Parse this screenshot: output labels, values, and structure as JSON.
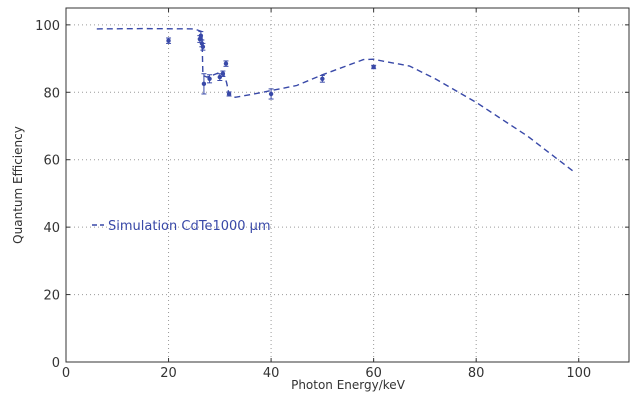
{
  "chart_data": {
    "type": "scatter",
    "xlabel": "Photon Energy/keV",
    "ylabel": "Quantum Efficiency",
    "xlim": [
      0,
      110
    ],
    "ylim": [
      0,
      105
    ],
    "x_ticks": [
      0,
      20,
      40,
      60,
      80,
      100
    ],
    "y_ticks": [
      0,
      20,
      40,
      60,
      80,
      100
    ],
    "grid": true,
    "legend_position": "middle-left",
    "colors": {
      "series": "#3949a8",
      "axis": "#333333",
      "grid": "#9a9a9a"
    },
    "series": [
      {
        "name": "Simulation CdTe1000 μm",
        "style": "dashed-line",
        "points": [
          {
            "x": 6,
            "y": 98.8
          },
          {
            "x": 15,
            "y": 98.9
          },
          {
            "x": 25,
            "y": 98.8
          },
          {
            "x": 26.5,
            "y": 98.0
          },
          {
            "x": 26.7,
            "y": 85.0
          },
          {
            "x": 27.5,
            "y": 84.5
          },
          {
            "x": 28.5,
            "y": 85.0
          },
          {
            "x": 30.5,
            "y": 86.2
          },
          {
            "x": 31.3,
            "y": 83.0
          },
          {
            "x": 31.8,
            "y": 79.5
          },
          {
            "x": 33,
            "y": 78.5
          },
          {
            "x": 36,
            "y": 79.3
          },
          {
            "x": 40,
            "y": 80.5
          },
          {
            "x": 45,
            "y": 82.0
          },
          {
            "x": 50,
            "y": 85.2
          },
          {
            "x": 55,
            "y": 88.0
          },
          {
            "x": 58,
            "y": 89.7
          },
          {
            "x": 60,
            "y": 89.8
          },
          {
            "x": 62,
            "y": 89.2
          },
          {
            "x": 67,
            "y": 87.8
          },
          {
            "x": 72,
            "y": 84.0
          },
          {
            "x": 80,
            "y": 77.0
          },
          {
            "x": 90,
            "y": 67.0
          },
          {
            "x": 99,
            "y": 56.5
          }
        ]
      },
      {
        "style": "markers-with-error-bars",
        "points": [
          {
            "x": 20,
            "y": 95.3,
            "err": 0.8
          },
          {
            "x": 26.1,
            "y": 95.8,
            "err": 1.0
          },
          {
            "x": 26.3,
            "y": 96.8,
            "err": 1.2
          },
          {
            "x": 26.5,
            "y": 94.5,
            "err": 1.0
          },
          {
            "x": 26.7,
            "y": 93.5,
            "err": 1.0
          },
          {
            "x": 26.9,
            "y": 82.5,
            "err": 3.0
          },
          {
            "x": 28,
            "y": 84.0,
            "err": 1.2
          },
          {
            "x": 30,
            "y": 84.5,
            "err": 1.0
          },
          {
            "x": 30.6,
            "y": 85.5,
            "err": 0.8
          },
          {
            "x": 31.2,
            "y": 88.5,
            "err": 0.8
          },
          {
            "x": 31.8,
            "y": 79.5,
            "err": 0.6
          },
          {
            "x": 40,
            "y": 79.5,
            "err": 1.5
          },
          {
            "x": 50,
            "y": 84.0,
            "err": 1.0
          },
          {
            "x": 60,
            "y": 87.5,
            "err": 0.5
          }
        ]
      }
    ]
  }
}
